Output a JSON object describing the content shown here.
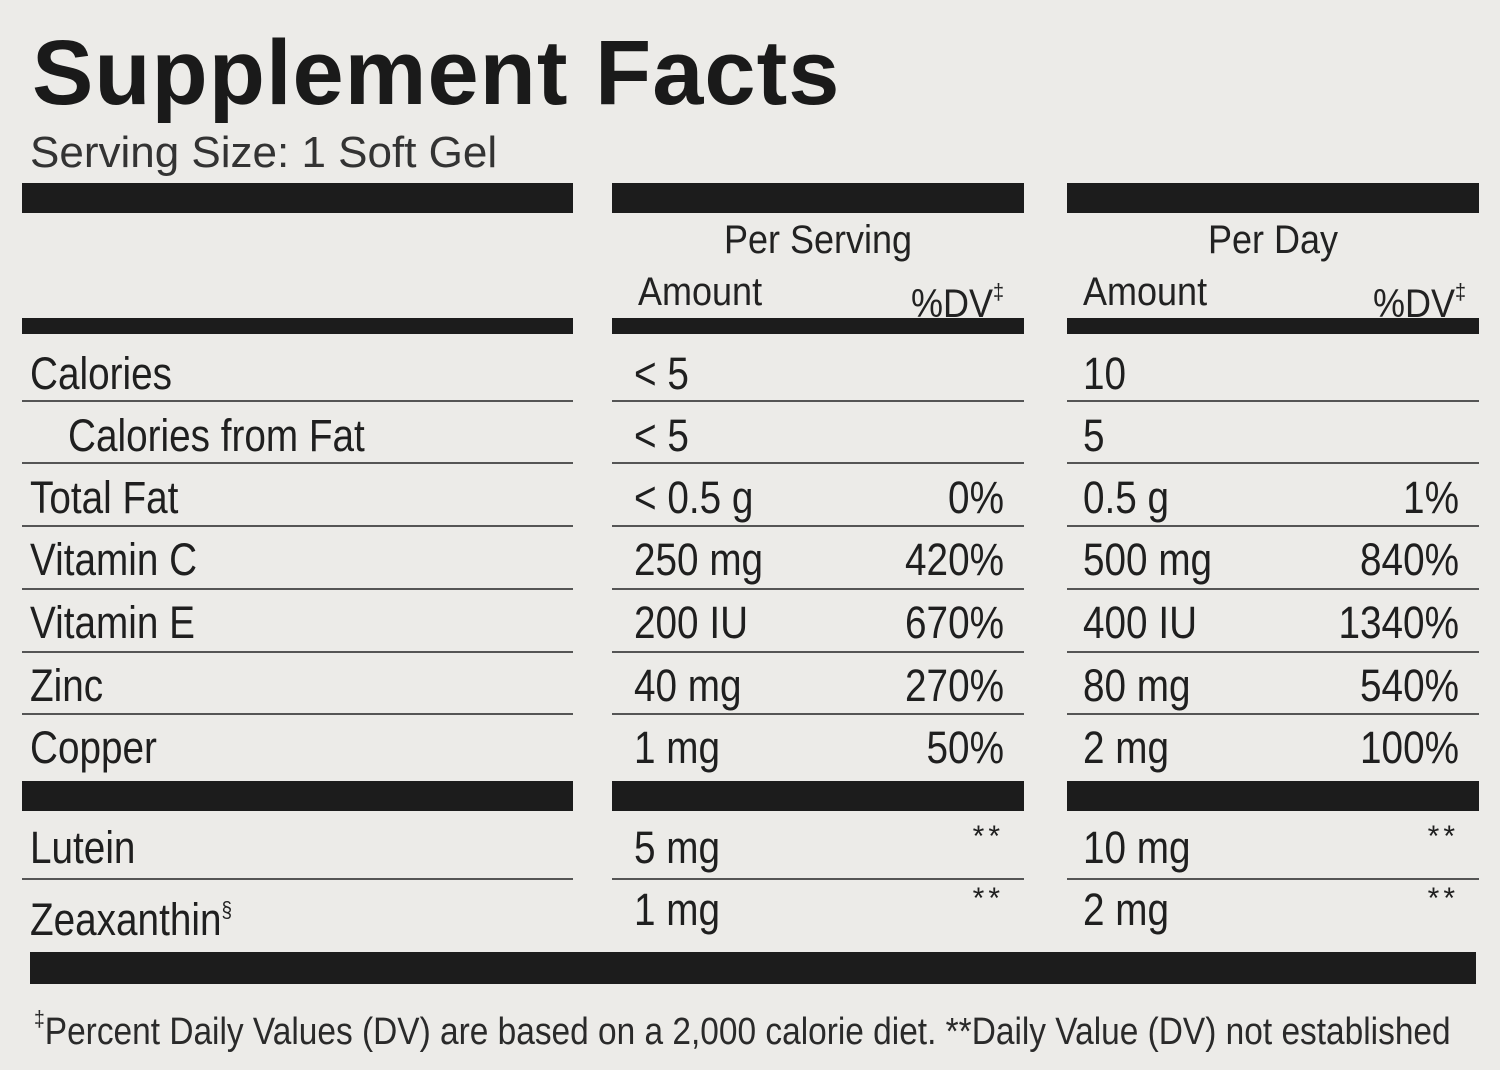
{
  "title": "Supplement Facts",
  "serving_size": "Serving Size: 1 Soft Gel",
  "headers": {
    "per_serving": "Per Serving",
    "per_day": "Per Day",
    "amount": "Amount",
    "dv": "%DV",
    "dv_mark": "‡"
  },
  "nutrients": [
    {
      "name": "Calories",
      "serving_amount": "< 5",
      "serving_dv": "",
      "day_amount": "10",
      "day_dv": ""
    },
    {
      "name": "Calories from Fat",
      "serving_amount": "< 5",
      "serving_dv": "",
      "day_amount": "5",
      "day_dv": ""
    },
    {
      "name": "Total Fat",
      "serving_amount": "< 0.5 g",
      "serving_dv": "0%",
      "day_amount": "0.5 g",
      "day_dv": "1%"
    },
    {
      "name": "Vitamin C",
      "serving_amount": "250 mg",
      "serving_dv": "420%",
      "day_amount": "500 mg",
      "day_dv": "840%"
    },
    {
      "name": "Vitamin E",
      "serving_amount": "200 IU",
      "serving_dv": "670%",
      "day_amount": "400 IU",
      "day_dv": "1340%"
    },
    {
      "name": "Zinc",
      "serving_amount": "40 mg",
      "serving_dv": "270%",
      "day_amount": "80 mg",
      "day_dv": "540%"
    },
    {
      "name": "Copper",
      "serving_amount": "1 mg",
      "serving_dv": "50%",
      "day_amount": "2 mg",
      "day_dv": "100%"
    }
  ],
  "others": [
    {
      "name": "Lutein",
      "name_mark": "",
      "serving_amount": "5 mg",
      "serving_dv": "**",
      "day_amount": "10 mg",
      "day_dv": "**"
    },
    {
      "name": "Zeaxanthin",
      "name_mark": "§",
      "serving_amount": "1 mg",
      "serving_dv": "**",
      "day_amount": "2 mg",
      "day_dv": "**"
    }
  ],
  "footnote": {
    "mark": "‡",
    "text": "Percent Daily Values (DV) are based on a 2,000 calorie diet. **Daily Value (DV) not established"
  }
}
